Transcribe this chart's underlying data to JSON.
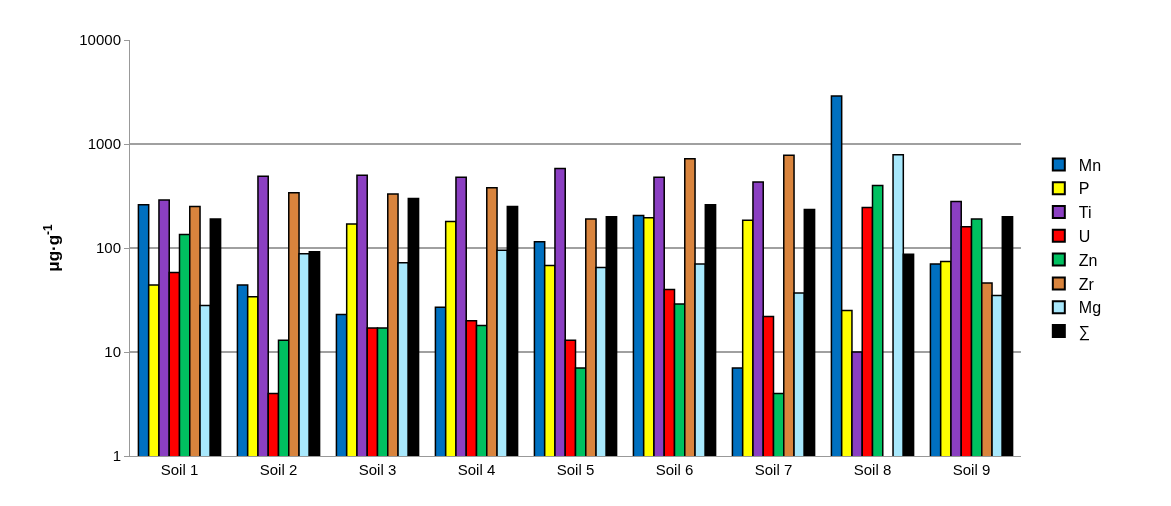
{
  "chart_data": {
    "type": "bar",
    "ylabel": "μg·g$^{-1}$",
    "log": true,
    "ylim": [
      1,
      10000
    ],
    "yticks": [
      1,
      10,
      100,
      1000,
      10000
    ],
    "grid": "y",
    "legend": "right",
    "categories": [
      "Soil 1",
      "Soil 2",
      "Soil 3",
      "Soil 4",
      "Soil 5",
      "Soil 6",
      "Soil 7",
      "Soil 8",
      "Soil 9"
    ],
    "series": [
      {
        "name": "Mn",
        "color": "#0070c0",
        "values": [
          260,
          44,
          23,
          27,
          115,
          205,
          7,
          2900,
          70
        ]
      },
      {
        "name": "P",
        "color": "#ffff00",
        "values": [
          44,
          34,
          170,
          180,
          68,
          195,
          185,
          25,
          74
        ]
      },
      {
        "name": "Ti",
        "color": "#8b3fc2",
        "values": [
          290,
          490,
          500,
          480,
          580,
          480,
          430,
          10,
          280
        ]
      },
      {
        "name": "U",
        "color": "#ff0000",
        "values": [
          58,
          4,
          17,
          20,
          13,
          40,
          22,
          245,
          160
        ]
      },
      {
        "name": "Zn",
        "color": "#00c060",
        "values": [
          135,
          13,
          17,
          18,
          7,
          29,
          4,
          400,
          190
        ]
      },
      {
        "name": "Zr",
        "color": "#d9843d",
        "values": [
          250,
          340,
          330,
          380,
          190,
          720,
          780,
          null,
          46
        ]
      },
      {
        "name": "Mg",
        "color": "#a8e8fc",
        "values": [
          28,
          88,
          72,
          95,
          65,
          70,
          37,
          790,
          35
        ]
      },
      {
        "name": "∑",
        "color": "#000000",
        "values": [
          190,
          92,
          300,
          250,
          200,
          260,
          235,
          87,
          200
        ]
      }
    ]
  }
}
